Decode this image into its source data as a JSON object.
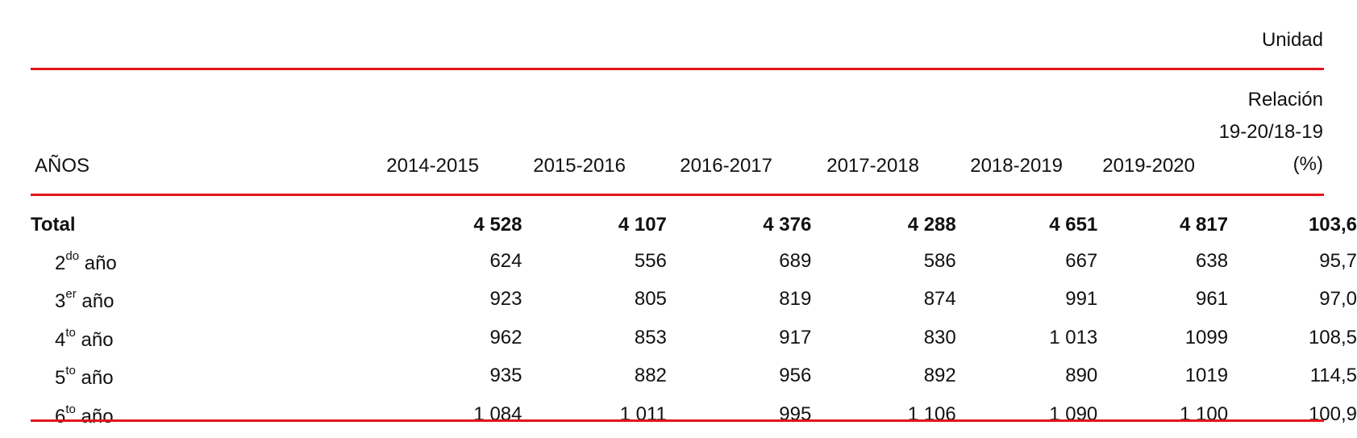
{
  "unit_label": "Unidad",
  "header": {
    "row_label": "AÑOS",
    "years": [
      "2014-2015",
      "2015-2016",
      "2016-2017",
      "2017-2018",
      "2018-2019",
      "2019-2020"
    ],
    "relation": {
      "line1": "Relación",
      "line2": "19-20/18-19",
      "line3": "(%)"
    }
  },
  "rows": [
    {
      "label": "Total",
      "sup": "",
      "suffix": "",
      "values": [
        "4 528",
        "4 107",
        "4 376",
        "4 288",
        "4 651",
        "4 817",
        "103,6"
      ]
    },
    {
      "label": "2",
      "sup": "do",
      "suffix": " año",
      "values": [
        "624",
        "556",
        "689",
        "586",
        "667",
        "638",
        "95,7"
      ]
    },
    {
      "label": "3",
      "sup": "er",
      "suffix": " año",
      "values": [
        "923",
        "805",
        "819",
        "874",
        "991",
        "961",
        "97,0"
      ]
    },
    {
      "label": "4",
      "sup": "to",
      "suffix": " año",
      "values": [
        "962",
        "853",
        "917",
        "830",
        "1 013",
        "1099",
        "108,5"
      ]
    },
    {
      "label": "5",
      "sup": "to",
      "suffix": " año",
      "values": [
        "935",
        "882",
        "956",
        "892",
        "890",
        "1019",
        "114,5"
      ]
    },
    {
      "label": "6",
      "sup": "to",
      "suffix": " año",
      "values": [
        "1 084",
        "1 011",
        "995",
        "1 106",
        "1 090",
        "1 100",
        "100,9"
      ]
    }
  ],
  "colors": {
    "rule": "#e3141b",
    "text": "#111111"
  }
}
